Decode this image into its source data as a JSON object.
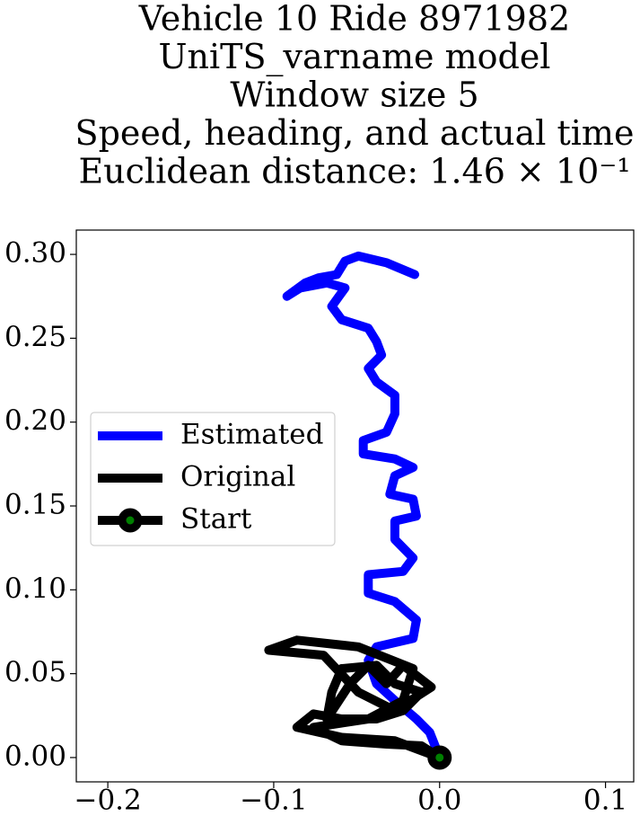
{
  "chart_data": {
    "type": "line",
    "title": [
      "Vehicle 10 Ride 8971982",
      "UniTS_varname model",
      "Window size 5",
      "Speed, heading, and actual time",
      "Euclidean distance: 1.46 × 10⁻¹"
    ],
    "series": [
      {
        "name": "Estimated",
        "color": "#0000ff",
        "x": [
          0,
          -0.006,
          -0.014,
          -0.027,
          -0.038,
          -0.043,
          -0.038,
          -0.016,
          -0.014,
          -0.027,
          -0.043,
          -0.043,
          -0.022,
          -0.016,
          -0.027,
          -0.027,
          -0.014,
          -0.016,
          -0.03,
          -0.027,
          -0.016,
          -0.027,
          -0.046,
          -0.046,
          -0.032,
          -0.027,
          -0.027,
          -0.038,
          -0.043,
          -0.035,
          -0.038,
          -0.043,
          -0.059,
          -0.065,
          -0.057,
          -0.068,
          -0.084,
          -0.092,
          -0.081,
          -0.073,
          -0.062,
          -0.057,
          -0.049,
          -0.032,
          -0.015
        ],
        "y": [
          0,
          0.015,
          0.023,
          0.034,
          0.044,
          0.058,
          0.066,
          0.071,
          0.082,
          0.093,
          0.098,
          0.109,
          0.111,
          0.119,
          0.13,
          0.141,
          0.144,
          0.154,
          0.157,
          0.168,
          0.173,
          0.178,
          0.181,
          0.189,
          0.194,
          0.205,
          0.216,
          0.224,
          0.232,
          0.24,
          0.248,
          0.256,
          0.261,
          0.269,
          0.28,
          0.283,
          0.28,
          0.275,
          0.283,
          0.286,
          0.288,
          0.296,
          0.299,
          0.295,
          0.288
        ]
      },
      {
        "name": "Original",
        "color": "#000000",
        "x": [
          0,
          -0.027,
          -0.059,
          -0.086,
          -0.076,
          -0.059,
          -0.038,
          -0.022,
          -0.011,
          -0.027,
          -0.038,
          -0.059,
          -0.065,
          -0.068,
          -0.054,
          -0.043,
          -0.032,
          -0.022,
          -0.005,
          -0.027,
          -0.049,
          -0.07,
          -0.103,
          -0.086,
          -0.049,
          -0.016,
          -0.022,
          -0.043,
          -0.076,
          -0.059,
          -0.032,
          -0.011,
          0
        ],
        "y": [
          0,
          0.01,
          0.012,
          0.018,
          0.026,
          0.023,
          0.023,
          0.028,
          0.039,
          0.044,
          0.055,
          0.053,
          0.039,
          0.023,
          0.044,
          0.055,
          0.044,
          0.055,
          0.042,
          0.028,
          0.039,
          0.061,
          0.064,
          0.07,
          0.066,
          0.053,
          0.034,
          0.023,
          0.018,
          0.01,
          0.008,
          0.007,
          0
        ]
      },
      {
        "name": "Start",
        "color": "#000000",
        "marker": "o",
        "marker_face_color": "#008000",
        "x": [
          0
        ],
        "y": [
          0
        ]
      }
    ],
    "xlim": [
      -0.219,
      0.117
    ],
    "ylim": [
      -0.0145,
      0.3145
    ],
    "xticks": [
      {
        "value": -0.2,
        "label": "−0.2"
      },
      {
        "value": -0.1,
        "label": "−0.1"
      },
      {
        "value": 0.0,
        "label": "0.0"
      },
      {
        "value": 0.1,
        "label": "0.1"
      }
    ],
    "yticks": [
      {
        "value": 0.0,
        "label": "0.00"
      },
      {
        "value": 0.05,
        "label": "0.05"
      },
      {
        "value": 0.1,
        "label": "0.10"
      },
      {
        "value": 0.15,
        "label": "0.15"
      },
      {
        "value": 0.2,
        "label": "0.20"
      },
      {
        "value": 0.25,
        "label": "0.25"
      },
      {
        "value": 0.3,
        "label": "0.30"
      }
    ],
    "legend": "center left",
    "grid": false
  }
}
